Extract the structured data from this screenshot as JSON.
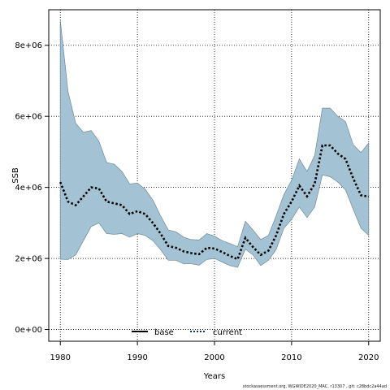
{
  "chart_data": {
    "type": "area",
    "title": "",
    "xlabel": "Years",
    "ylabel": "SSB",
    "xlim": [
      1978.5,
      2021.5
    ],
    "ylim": [
      -330000,
      9000000
    ],
    "x_ticks": [
      1980,
      1990,
      2000,
      2010,
      2020
    ],
    "y_ticks": [
      0,
      2000000,
      4000000,
      6000000,
      8000000
    ],
    "y_tick_labels": [
      "0e+00",
      "2e+06",
      "4e+06",
      "6e+06",
      "8e+06"
    ],
    "grid": true,
    "legend_position": "bottom",
    "legend": [
      {
        "name": "base",
        "style": "solid",
        "color": "#000000"
      },
      {
        "name": "current",
        "style": "dotted",
        "color": "#0a3a5c"
      }
    ],
    "band_color": "#a3c3d4",
    "band_edge_color": "#6f8a99",
    "x": [
      1980,
      1981,
      1982,
      1983,
      1984,
      1985,
      1986,
      1987,
      1988,
      1989,
      1990,
      1991,
      1992,
      1993,
      1994,
      1995,
      1996,
      1997,
      1998,
      1999,
      2000,
      2001,
      2002,
      2003,
      2004,
      2005,
      2006,
      2007,
      2008,
      2009,
      2010,
      2011,
      2012,
      2013,
      2014,
      2015,
      2016,
      2017,
      2018,
      2019,
      2020
    ],
    "upper": [
      8700000,
      6700000,
      5800000,
      5550000,
      5600000,
      5300000,
      4700000,
      4650000,
      4450000,
      4100000,
      4120000,
      3950000,
      3650000,
      3200000,
      2800000,
      2750000,
      2600000,
      2530000,
      2520000,
      2700000,
      2630000,
      2500000,
      2420000,
      2330000,
      3050000,
      2800000,
      2530000,
      2650000,
      3200000,
      3800000,
      4200000,
      4800000,
      4450000,
      4900000,
      6230000,
      6230000,
      6000000,
      5850000,
      5200000,
      4980000,
      5250000
    ],
    "lower": [
      1980000,
      1970000,
      2100000,
      2500000,
      2900000,
      3000000,
      2700000,
      2680000,
      2700000,
      2600000,
      2700000,
      2650000,
      2500000,
      2250000,
      1950000,
      1950000,
      1850000,
      1850000,
      1810000,
      1970000,
      2000000,
      1900000,
      1800000,
      1750000,
      2260000,
      2100000,
      1800000,
      1950000,
      2250000,
      2850000,
      3100000,
      3450000,
      3150000,
      3450000,
      4350000,
      4300000,
      4150000,
      3930000,
      3380000,
      2850000,
      2650000
    ],
    "series": [
      {
        "name": "current",
        "values": [
          4150000,
          3600000,
          3500000,
          3750000,
          4000000,
          3970000,
          3600000,
          3550000,
          3500000,
          3250000,
          3330000,
          3250000,
          3000000,
          2700000,
          2350000,
          2300000,
          2200000,
          2150000,
          2120000,
          2300000,
          2280000,
          2180000,
          2070000,
          1980000,
          2580000,
          2320000,
          2100000,
          2220000,
          2650000,
          3250000,
          3600000,
          4050000,
          3750000,
          4100000,
          5180000,
          5180000,
          4950000,
          4800000,
          4250000,
          3780000,
          3740000
        ]
      }
    ]
  },
  "footer": "stockassessment.org, WGWIDE2020_MAC, r13307 , git: c28bdc2a44ad"
}
